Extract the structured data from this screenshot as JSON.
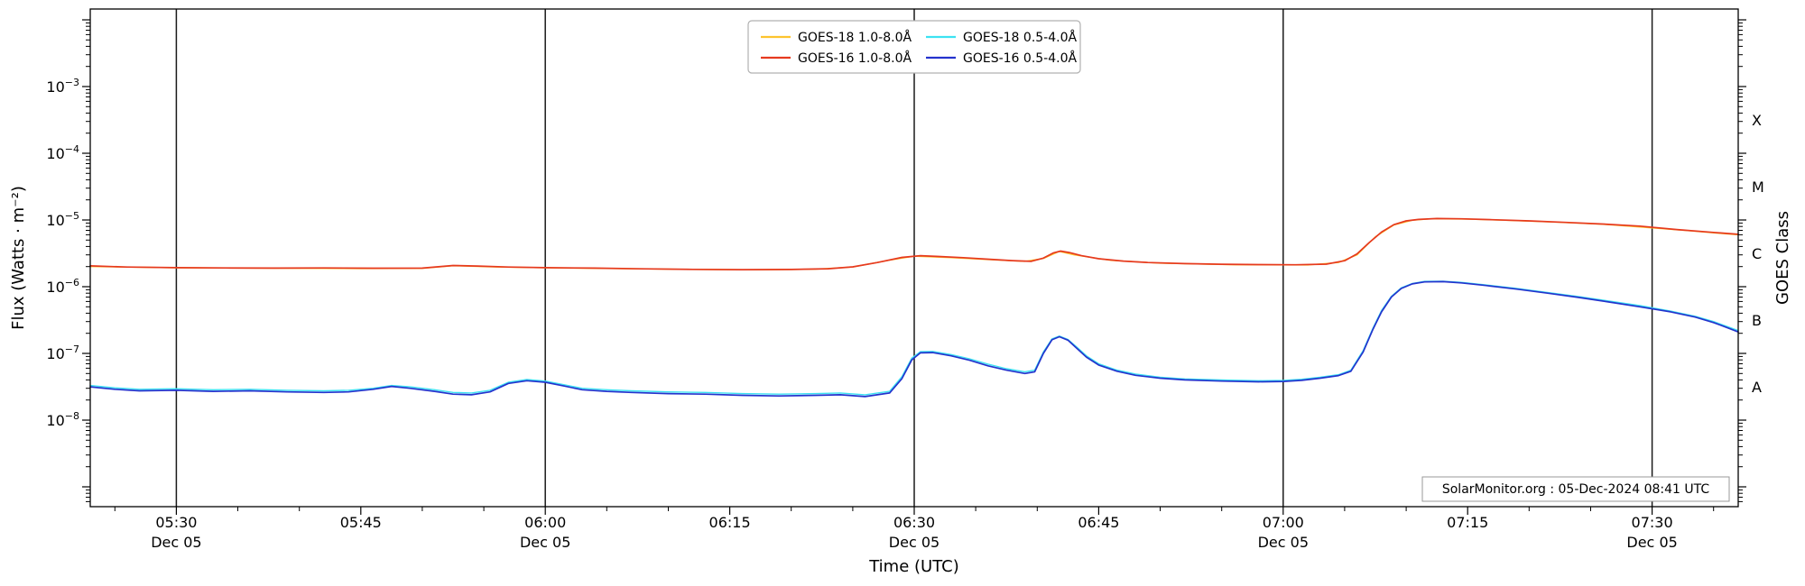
{
  "watermark": "SolarMonitor.org : 05-Dec-2024 08:41 UTC",
  "chart_data": {
    "type": "line",
    "title": "",
    "xlabel": "Time (UTC)",
    "ylabel": "Flux (Watts · m⁻²)",
    "ylabel_right": "GOES Class",
    "yscale": "log",
    "x_encoding": "minutes_after_0000_utc",
    "xlim_minutes": [
      323,
      457
    ],
    "ylim": [
      5e-10,
      0.0145
    ],
    "grid": "vertical_day_lines_only",
    "legend_position": "top-center",
    "x_major_ticks": [
      {
        "minute": 330,
        "time": "05:30",
        "date": "Dec 05"
      },
      {
        "minute": 345,
        "time": "05:45"
      },
      {
        "minute": 360,
        "time": "06:00",
        "date": "Dec 05"
      },
      {
        "minute": 375,
        "time": "06:15"
      },
      {
        "minute": 390,
        "time": "06:30",
        "date": "Dec 05"
      },
      {
        "minute": 405,
        "time": "06:45"
      },
      {
        "minute": 420,
        "time": "07:00",
        "date": "Dec 05"
      },
      {
        "minute": 435,
        "time": "07:15"
      },
      {
        "minute": 450,
        "time": "07:30",
        "date": "Dec 05"
      }
    ],
    "x_minor_step_minutes": 5,
    "y_tick_exponents": [
      -3,
      -4,
      -5,
      -6,
      -7,
      -8
    ],
    "day_lines_minutes": [
      330,
      360,
      390,
      420,
      450
    ],
    "goes_classes": [
      {
        "label": "X",
        "flux": 0.0003162
      },
      {
        "label": "M",
        "flux": 3.162e-05
      },
      {
        "label": "C",
        "flux": 3.162e-06
      },
      {
        "label": "B",
        "flux": 3.162e-07
      },
      {
        "label": "A",
        "flux": 3.162e-08
      }
    ],
    "series": [
      {
        "name": "GOES-18 1.0-8.0Å",
        "color": "#fdc42e",
        "width": 1.4,
        "points": [
          [
            323,
            2e-06
          ],
          [
            330,
            1.92e-06
          ],
          [
            338,
            1.89e-06
          ],
          [
            345,
            1.87e-06
          ],
          [
            350,
            1.88e-06
          ],
          [
            352.5,
            2.06e-06
          ],
          [
            356,
            1.97e-06
          ],
          [
            362,
            1.9e-06
          ],
          [
            370,
            1.83e-06
          ],
          [
            377,
            1.79e-06
          ],
          [
            382,
            1.83e-06
          ],
          [
            385,
            1.97e-06
          ],
          [
            388,
            2.5e-06
          ],
          [
            390,
            2.86e-06
          ],
          [
            393,
            2.72e-06
          ],
          [
            396,
            2.55e-06
          ],
          [
            399,
            2.4e-06
          ],
          [
            400.5,
            2.65e-06
          ],
          [
            401.8,
            3.38e-06
          ],
          [
            403,
            3e-06
          ],
          [
            406,
            2.48e-06
          ],
          [
            410,
            2.25e-06
          ],
          [
            416,
            2.13e-06
          ],
          [
            422,
            2.12e-06
          ],
          [
            424.5,
            2.3e-06
          ],
          [
            426,
            3e-06
          ],
          [
            427.5,
            5.6e-06
          ],
          [
            429,
            8.4e-06
          ],
          [
            430.5,
            9.9e-06
          ],
          [
            432,
            1.04e-05
          ],
          [
            435,
            1.03e-05
          ],
          [
            438,
            9.9e-06
          ],
          [
            442,
            9.3e-06
          ],
          [
            446,
            8.6e-06
          ],
          [
            450,
            7.6e-06
          ],
          [
            453,
            6.9e-06
          ],
          [
            455,
            6.4e-06
          ],
          [
            457,
            6e-06
          ]
        ]
      },
      {
        "name": "GOES-16 1.0-8.0Å",
        "color": "#e63a1f",
        "width": 1.7,
        "points": [
          [
            323,
            2.05e-06
          ],
          [
            326,
            1.97e-06
          ],
          [
            330,
            1.93e-06
          ],
          [
            334,
            1.91e-06
          ],
          [
            338,
            1.9e-06
          ],
          [
            342,
            1.91e-06
          ],
          [
            346,
            1.89e-06
          ],
          [
            350,
            1.9e-06
          ],
          [
            352.5,
            2.08e-06
          ],
          [
            354.5,
            2.04e-06
          ],
          [
            357,
            1.97e-06
          ],
          [
            360,
            1.93e-06
          ],
          [
            364,
            1.9e-06
          ],
          [
            368,
            1.85e-06
          ],
          [
            372,
            1.82e-06
          ],
          [
            376,
            1.8e-06
          ],
          [
            380,
            1.81e-06
          ],
          [
            383,
            1.86e-06
          ],
          [
            385,
            1.98e-06
          ],
          [
            387,
            2.3e-06
          ],
          [
            389,
            2.75e-06
          ],
          [
            390.5,
            2.92e-06
          ],
          [
            392,
            2.84e-06
          ],
          [
            394,
            2.72e-06
          ],
          [
            396,
            2.58e-06
          ],
          [
            398,
            2.46e-06
          ],
          [
            399.5,
            2.4e-06
          ],
          [
            400.5,
            2.68e-06
          ],
          [
            401.3,
            3.2e-06
          ],
          [
            401.9,
            3.42e-06
          ],
          [
            402.6,
            3.25e-06
          ],
          [
            403.6,
            2.92e-06
          ],
          [
            405,
            2.62e-06
          ],
          [
            407,
            2.42e-06
          ],
          [
            409,
            2.3e-06
          ],
          [
            412,
            2.22e-06
          ],
          [
            415,
            2.17e-06
          ],
          [
            418,
            2.14e-06
          ],
          [
            421,
            2.13e-06
          ],
          [
            423.5,
            2.18e-06
          ],
          [
            425,
            2.45e-06
          ],
          [
            426,
            3.1e-06
          ],
          [
            427,
            4.6e-06
          ],
          [
            428,
            6.6e-06
          ],
          [
            429,
            8.5e-06
          ],
          [
            430,
            9.7e-06
          ],
          [
            431,
            1.02e-05
          ],
          [
            432.5,
            1.05e-05
          ],
          [
            434.5,
            1.04e-05
          ],
          [
            437,
            1.01e-05
          ],
          [
            440,
            9.7e-06
          ],
          [
            443,
            9.2e-06
          ],
          [
            446,
            8.7e-06
          ],
          [
            449,
            8.1e-06
          ],
          [
            452,
            7.2e-06
          ],
          [
            455,
            6.5e-06
          ],
          [
            457,
            6.1e-06
          ]
        ]
      },
      {
        "name": "GOES-18 0.5-4.0Å",
        "color": "#3ce2f2",
        "width": 1.4,
        "points": [
          [
            323,
            3.3e-08
          ],
          [
            325,
            3.05e-08
          ],
          [
            327,
            2.9e-08
          ],
          [
            330,
            2.95e-08
          ],
          [
            333,
            2.85e-08
          ],
          [
            336,
            2.9e-08
          ],
          [
            339,
            2.8e-08
          ],
          [
            342,
            2.75e-08
          ],
          [
            344,
            2.8e-08
          ],
          [
            346,
            3e-08
          ],
          [
            347.5,
            3.3e-08
          ],
          [
            349,
            3.15e-08
          ],
          [
            351,
            2.85e-08
          ],
          [
            352.5,
            2.6e-08
          ],
          [
            354,
            2.55e-08
          ],
          [
            355.5,
            2.8e-08
          ],
          [
            357,
            3.7e-08
          ],
          [
            358.5,
            4.05e-08
          ],
          [
            360,
            3.85e-08
          ],
          [
            361.5,
            3.4e-08
          ],
          [
            363,
            3e-08
          ],
          [
            365,
            2.85e-08
          ],
          [
            367,
            2.75e-08
          ],
          [
            370,
            2.65e-08
          ],
          [
            373,
            2.6e-08
          ],
          [
            376,
            2.5e-08
          ],
          [
            379,
            2.45e-08
          ],
          [
            382,
            2.5e-08
          ],
          [
            384,
            2.55e-08
          ],
          [
            386,
            2.4e-08
          ],
          [
            388,
            2.7e-08
          ],
          [
            389,
            4.5e-08
          ],
          [
            389.8,
            8.5e-08
          ],
          [
            390.5,
            1.06e-07
          ],
          [
            391.5,
            1.07e-07
          ],
          [
            393,
            9.6e-08
          ],
          [
            394.5,
            8.3e-08
          ],
          [
            396,
            6.9e-08
          ],
          [
            397.5,
            5.9e-08
          ],
          [
            399,
            5.3e-08
          ],
          [
            399.8,
            5.6e-08
          ],
          [
            400.5,
            1.05e-07
          ],
          [
            401.2,
            1.65e-07
          ],
          [
            401.8,
            1.82e-07
          ],
          [
            402.5,
            1.62e-07
          ],
          [
            403.2,
            1.25e-07
          ],
          [
            404,
            9.2e-08
          ],
          [
            405,
            7e-08
          ],
          [
            406.5,
            5.6e-08
          ],
          [
            408,
            4.9e-08
          ],
          [
            410,
            4.4e-08
          ],
          [
            412,
            4.15e-08
          ],
          [
            415,
            4e-08
          ],
          [
            418,
            3.9e-08
          ],
          [
            420,
            3.95e-08
          ],
          [
            421.5,
            4.1e-08
          ],
          [
            423,
            4.4e-08
          ],
          [
            424.5,
            4.8e-08
          ],
          [
            425.5,
            5.6e-08
          ],
          [
            426.5,
            1.1e-07
          ],
          [
            427.3,
            2.4e-07
          ],
          [
            428,
            4.4e-07
          ],
          [
            428.8,
            7.2e-07
          ],
          [
            429.6,
            9.6e-07
          ],
          [
            430.5,
            1.12e-06
          ],
          [
            431.5,
            1.2e-06
          ],
          [
            433,
            1.21e-06
          ],
          [
            434.5,
            1.16e-06
          ],
          [
            436.5,
            1.06e-06
          ],
          [
            439,
            9.4e-07
          ],
          [
            441.5,
            8.2e-07
          ],
          [
            444,
            7.1e-07
          ],
          [
            446.5,
            6.1e-07
          ],
          [
            449,
            5.2e-07
          ],
          [
            451.5,
            4.3e-07
          ],
          [
            453.5,
            3.6e-07
          ],
          [
            455,
            3e-07
          ],
          [
            456.2,
            2.5e-07
          ],
          [
            457,
            2.2e-07
          ]
        ]
      },
      {
        "name": "GOES-16 0.5-4.0Å",
        "color": "#2433cd",
        "width": 1.7,
        "points": [
          [
            323,
            3.15e-08
          ],
          [
            325,
            2.9e-08
          ],
          [
            327,
            2.75e-08
          ],
          [
            330,
            2.8e-08
          ],
          [
            333,
            2.7e-08
          ],
          [
            336,
            2.75e-08
          ],
          [
            339,
            2.65e-08
          ],
          [
            342,
            2.6e-08
          ],
          [
            344,
            2.65e-08
          ],
          [
            346,
            2.9e-08
          ],
          [
            347.5,
            3.2e-08
          ],
          [
            349,
            3e-08
          ],
          [
            351,
            2.7e-08
          ],
          [
            352.5,
            2.45e-08
          ],
          [
            354,
            2.4e-08
          ],
          [
            355.5,
            2.65e-08
          ],
          [
            357,
            3.55e-08
          ],
          [
            358.5,
            3.9e-08
          ],
          [
            360,
            3.7e-08
          ],
          [
            361.5,
            3.25e-08
          ],
          [
            363,
            2.85e-08
          ],
          [
            365,
            2.7e-08
          ],
          [
            367,
            2.6e-08
          ],
          [
            370,
            2.5e-08
          ],
          [
            373,
            2.45e-08
          ],
          [
            376,
            2.35e-08
          ],
          [
            379,
            2.3e-08
          ],
          [
            382,
            2.35e-08
          ],
          [
            384,
            2.4e-08
          ],
          [
            386,
            2.25e-08
          ],
          [
            388,
            2.55e-08
          ],
          [
            389,
            4.2e-08
          ],
          [
            389.8,
            8e-08
          ],
          [
            390.5,
            1.02e-07
          ],
          [
            391.5,
            1.03e-07
          ],
          [
            393,
            9.2e-08
          ],
          [
            394.5,
            7.9e-08
          ],
          [
            396,
            6.5e-08
          ],
          [
            397.5,
            5.6e-08
          ],
          [
            399,
            5e-08
          ],
          [
            399.8,
            5.3e-08
          ],
          [
            400.5,
            1e-07
          ],
          [
            401.2,
            1.6e-07
          ],
          [
            401.8,
            1.78e-07
          ],
          [
            402.5,
            1.58e-07
          ],
          [
            403.2,
            1.2e-07
          ],
          [
            404,
            8.8e-08
          ],
          [
            405,
            6.7e-08
          ],
          [
            406.5,
            5.4e-08
          ],
          [
            408,
            4.7e-08
          ],
          [
            410,
            4.25e-08
          ],
          [
            412,
            4e-08
          ],
          [
            415,
            3.85e-08
          ],
          [
            418,
            3.75e-08
          ],
          [
            420,
            3.8e-08
          ],
          [
            421.5,
            3.95e-08
          ],
          [
            423,
            4.25e-08
          ],
          [
            424.5,
            4.65e-08
          ],
          [
            425.5,
            5.4e-08
          ],
          [
            426.5,
            1.05e-07
          ],
          [
            427.3,
            2.3e-07
          ],
          [
            428,
            4.2e-07
          ],
          [
            428.8,
            7e-07
          ],
          [
            429.6,
            9.4e-07
          ],
          [
            430.5,
            1.1e-06
          ],
          [
            431.5,
            1.18e-06
          ],
          [
            433,
            1.19e-06
          ],
          [
            434.5,
            1.14e-06
          ],
          [
            436.5,
            1.04e-06
          ],
          [
            439,
            9.2e-07
          ],
          [
            441.5,
            8e-07
          ],
          [
            444,
            6.9e-07
          ],
          [
            446.5,
            5.9e-07
          ],
          [
            449,
            5e-07
          ],
          [
            451.5,
            4.2e-07
          ],
          [
            453.5,
            3.5e-07
          ],
          [
            455,
            2.9e-07
          ],
          [
            456.2,
            2.4e-07
          ],
          [
            457,
            2.1e-07
          ]
        ]
      }
    ]
  }
}
